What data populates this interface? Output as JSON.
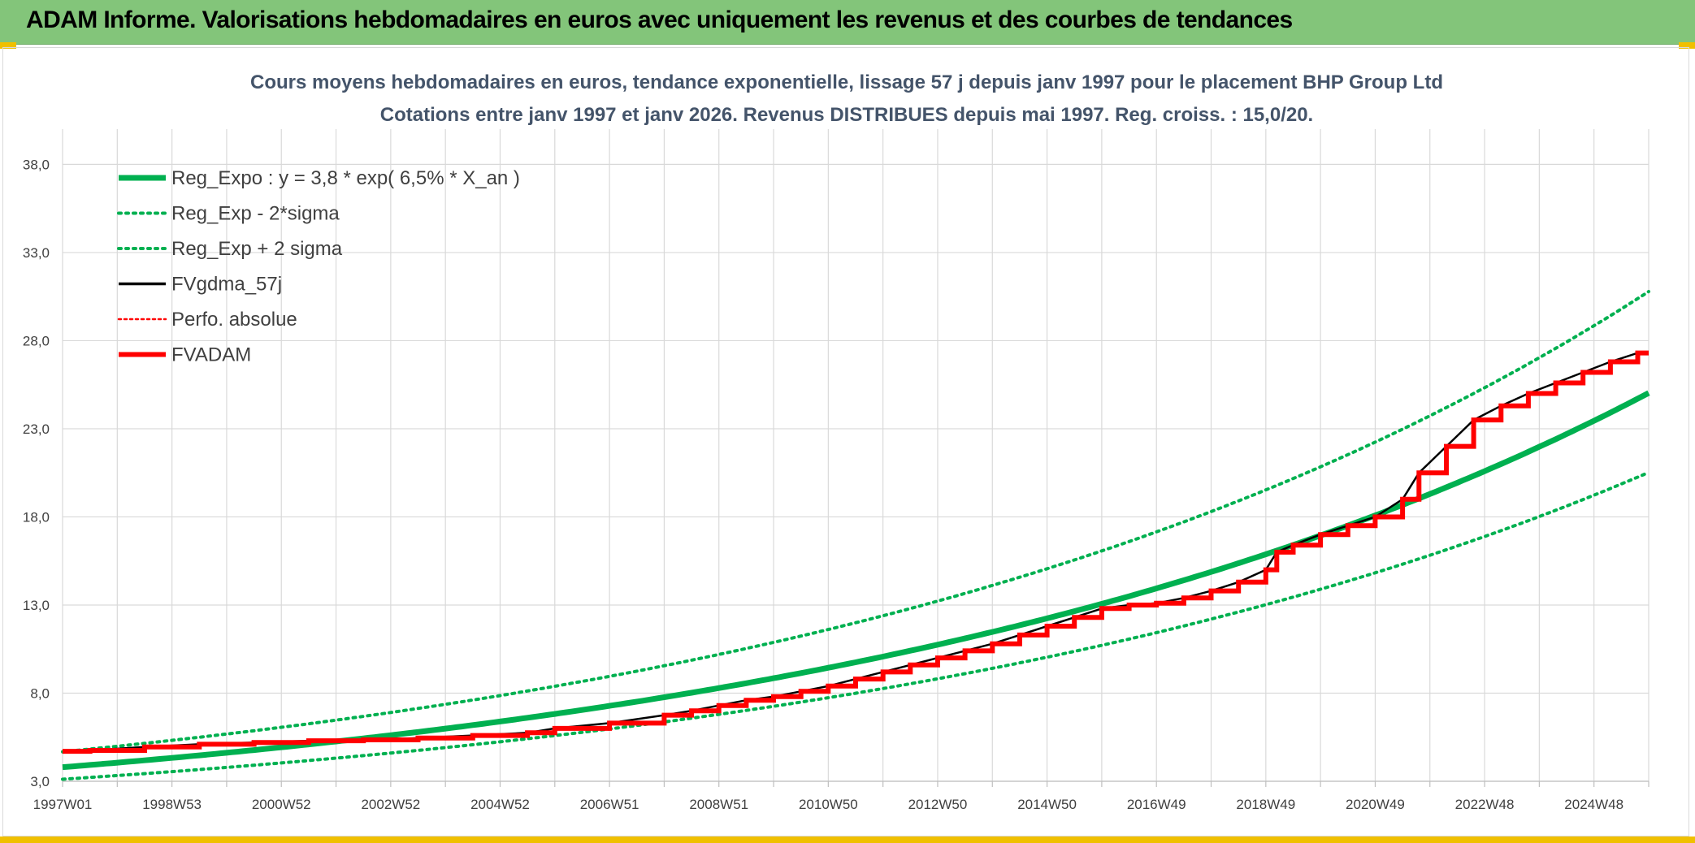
{
  "banner": {
    "title": "ADAM Informe. Valorisations hebdomadaires en euros avec uniquement les revenus et des courbes de tendances"
  },
  "colors": {
    "banner_bg": "#83c57a",
    "trend_green": "#00b050",
    "adam_red": "#ff0000",
    "gdma_black": "#000000",
    "grid": "#d9d9d9",
    "title_text": "#44546a"
  },
  "chart_data": {
    "type": "line",
    "title": "Cours moyens hebdomadaires en euros, tendance exponentielle, lissage 57 j depuis janv 1997 pour le placement BHP Group Ltd",
    "subtitle": "Cotations entre janv 1997 et janv 2026. Revenus DISTRIBUES depuis mai 1997. Reg. croiss. : 15,0/20.",
    "x_range": [
      "1997W01",
      "2026W02"
    ],
    "x_tick_labels": [
      "1997W01",
      "1998W53",
      "2000W52",
      "2002W52",
      "2004W52",
      "2006W51",
      "2008W51",
      "2010W50",
      "2012W50",
      "2014W50",
      "2016W49",
      "2018W49",
      "2020W49",
      "2022W48",
      "2024W48"
    ],
    "x_tick_years": [
      1997.0,
      1999.0,
      2001.0,
      2003.0,
      2005.0,
      2007.0,
      2009.0,
      2011.0,
      2013.0,
      2015.0,
      2017.0,
      2019.0,
      2021.0,
      2023.0,
      2025.0
    ],
    "ylim": [
      3.0,
      40.0
    ],
    "y_ticks": [
      3.0,
      8.0,
      13.0,
      18.0,
      23.0,
      28.0,
      33.0,
      38.0
    ],
    "y_tick_labels": [
      "3,0",
      "8,0",
      "13,0",
      "18,0",
      "23,0",
      "28,0",
      "33,0",
      "38,0"
    ],
    "grid": true,
    "legend_position": "top-left",
    "legend": [
      "Reg_Expo : y = 3,8 * exp( 6,5% *  X_an )",
      "Reg_Exp - 2*sigma",
      "Reg_Exp + 2 sigma",
      "FVgdma_57j",
      "Perfo. absolue",
      "FVADAM"
    ],
    "regression": {
      "a": 3.8,
      "rate": 0.065,
      "lower_factor": 0.82,
      "upper_factor": 1.23
    },
    "series": [
      {
        "name": "FVADAM",
        "style": "step",
        "x": [
          1997.0,
          1997.4,
          1998.4,
          1999.4,
          2000.4,
          2001.4,
          2002.4,
          2003.4,
          2004.4,
          2005.4,
          2006.4,
          2007.4,
          2008.4,
          2009.4,
          2010.4,
          2011.4,
          2012.4,
          2013.4,
          2014.4,
          2015.4,
          2016.4,
          2017.4,
          2018.4,
          2019.4,
          2020.4,
          2021.4,
          2022.4,
          2023.4,
          2024.4,
          2025.4,
          2026.0
        ],
        "y": [
          4.7,
          4.8,
          5.0,
          5.2,
          5.3,
          5.4,
          5.5,
          5.6,
          5.7,
          5.8,
          6.0,
          6.3,
          6.7,
          7.3,
          7.8,
          8.3,
          9.0,
          9.7,
          10.6,
          11.7,
          12.8,
          13.2,
          14.0,
          15.0,
          16.8,
          18.2,
          20.5,
          23.5,
          25.0,
          26.5,
          27.5
        ],
        "step_points": [
          [
            1997.0,
            4.7
          ],
          [
            1997.5,
            4.75
          ],
          [
            1998.5,
            4.95
          ],
          [
            1999.5,
            5.1
          ],
          [
            2000.5,
            5.2
          ],
          [
            2001.5,
            5.3
          ],
          [
            2002.5,
            5.35
          ],
          [
            2003.5,
            5.45
          ],
          [
            2004.5,
            5.6
          ],
          [
            2005.5,
            5.75
          ],
          [
            2006.0,
            6.0
          ],
          [
            2007.0,
            6.3
          ],
          [
            2008.0,
            6.75
          ],
          [
            2008.5,
            7.0
          ],
          [
            2009.0,
            7.3
          ],
          [
            2009.5,
            7.6
          ],
          [
            2010.0,
            7.8
          ],
          [
            2010.5,
            8.1
          ],
          [
            2011.0,
            8.4
          ],
          [
            2011.5,
            8.8
          ],
          [
            2012.0,
            9.2
          ],
          [
            2012.5,
            9.6
          ],
          [
            2013.0,
            10.0
          ],
          [
            2013.5,
            10.4
          ],
          [
            2014.0,
            10.8
          ],
          [
            2014.5,
            11.3
          ],
          [
            2015.0,
            11.8
          ],
          [
            2015.5,
            12.3
          ],
          [
            2016.0,
            12.8
          ],
          [
            2016.5,
            13.0
          ],
          [
            2017.0,
            13.1
          ],
          [
            2017.5,
            13.4
          ],
          [
            2018.0,
            13.8
          ],
          [
            2018.5,
            14.3
          ],
          [
            2019.0,
            15.0
          ],
          [
            2019.2,
            16.0
          ],
          [
            2019.5,
            16.4
          ],
          [
            2020.0,
            17.0
          ],
          [
            2020.5,
            17.5
          ],
          [
            2021.0,
            18.0
          ],
          [
            2021.5,
            19.0
          ],
          [
            2021.8,
            20.5
          ],
          [
            2022.3,
            22.0
          ],
          [
            2022.8,
            23.5
          ],
          [
            2023.3,
            24.3
          ],
          [
            2023.8,
            25.0
          ],
          [
            2024.3,
            25.6
          ],
          [
            2024.8,
            26.2
          ],
          [
            2025.3,
            26.8
          ],
          [
            2025.8,
            27.3
          ]
        ]
      },
      {
        "name": "FVgdma_57j",
        "style": "smooth_of_FVADAM"
      },
      {
        "name": "Perfo. absolue",
        "style": "hidden_behind_FVADAM"
      }
    ]
  }
}
